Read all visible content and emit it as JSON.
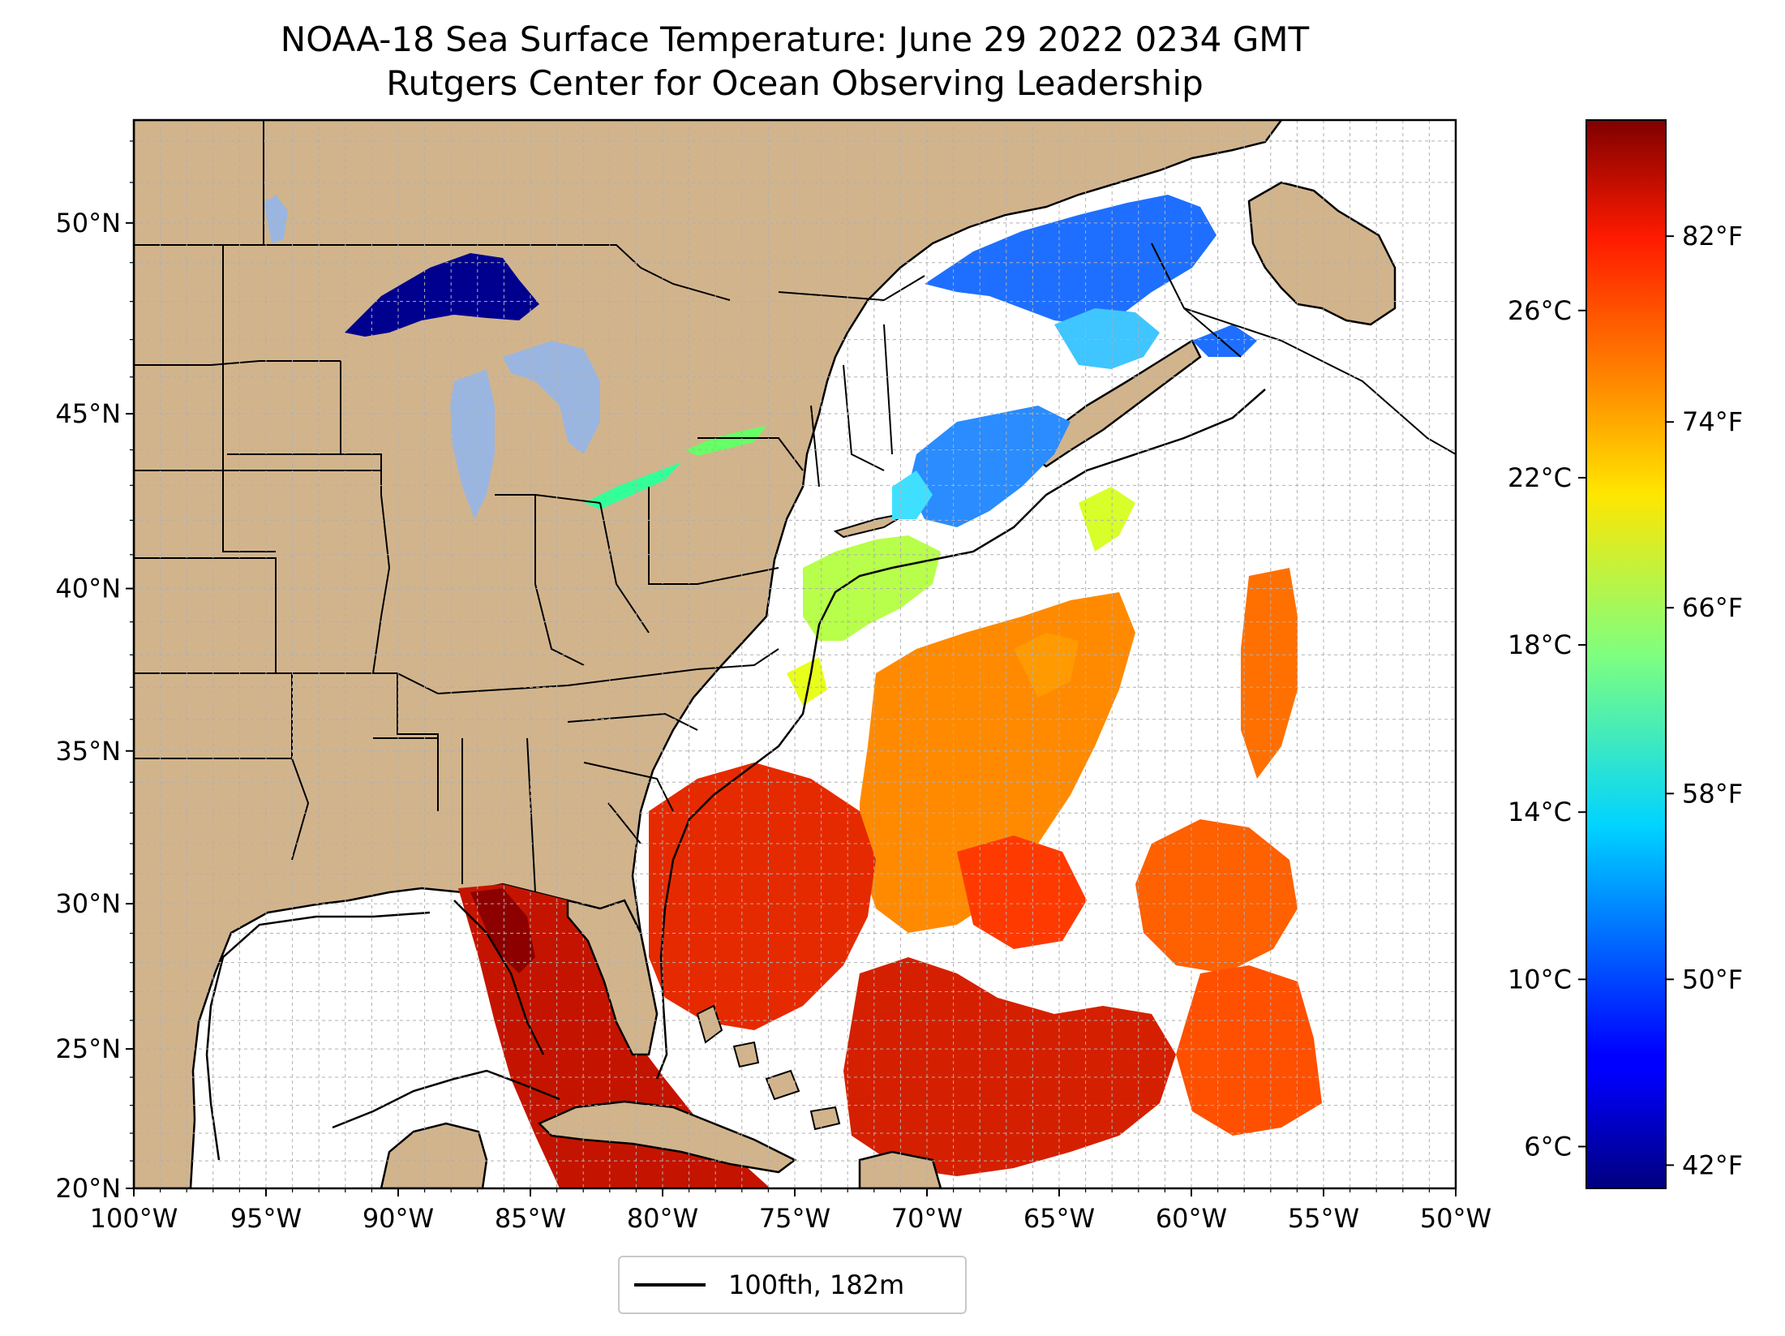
{
  "title": {
    "line1": "NOAA-18 Sea Surface Temperature: June 29 2022 0234 GMT",
    "line2": "Rutgers Center for Ocean Observing Leadership"
  },
  "map": {
    "extent": {
      "lon_min": -100,
      "lon_max": -50,
      "lat_min": 20,
      "lat_max": 52.5
    },
    "lat_ticks": [
      {
        "value": 50,
        "label": "50°N"
      },
      {
        "value": 45,
        "label": "45°N"
      },
      {
        "value": 40,
        "label": "40°N"
      },
      {
        "value": 35,
        "label": "35°N"
      },
      {
        "value": 30,
        "label": "30°N"
      },
      {
        "value": 25,
        "label": "25°N"
      },
      {
        "value": 20,
        "label": "20°N"
      }
    ],
    "lon_ticks": [
      {
        "value": -100,
        "label": "100°W"
      },
      {
        "value": -95,
        "label": "95°W"
      },
      {
        "value": -90,
        "label": "90°W"
      },
      {
        "value": -85,
        "label": "85°W"
      },
      {
        "value": -80,
        "label": "80°W"
      },
      {
        "value": -75,
        "label": "75°W"
      },
      {
        "value": -70,
        "label": "70°W"
      },
      {
        "value": -65,
        "label": "65°W"
      },
      {
        "value": -60,
        "label": "60°W"
      },
      {
        "value": -55,
        "label": "55°W"
      },
      {
        "value": -50,
        "label": "50°W"
      }
    ],
    "colors": {
      "land": "#d2b48c",
      "lakes": "#9ab6e0",
      "ocean_cloud": "#ffffff",
      "grid": "#b0b0b0"
    }
  },
  "colorbar": {
    "colormap": "jet",
    "celsius_ticks": [
      {
        "value": 26,
        "label": "26°C"
      },
      {
        "value": 22,
        "label": "22°C"
      },
      {
        "value": 18,
        "label": "18°C"
      },
      {
        "value": 14,
        "label": "14°C"
      },
      {
        "value": 10,
        "label": "10°C"
      },
      {
        "value": 6,
        "label": "6°C"
      }
    ],
    "fahrenheit_ticks": [
      {
        "value": 82,
        "label": "82°F"
      },
      {
        "value": 74,
        "label": "74°F"
      },
      {
        "value": 66,
        "label": "66°F"
      },
      {
        "value": 58,
        "label": "58°F"
      },
      {
        "value": 50,
        "label": "50°F"
      },
      {
        "value": 42,
        "label": "42°F"
      }
    ],
    "range_f": [
      41,
      87
    ]
  },
  "legend": {
    "label": "100fth, 182m"
  }
}
